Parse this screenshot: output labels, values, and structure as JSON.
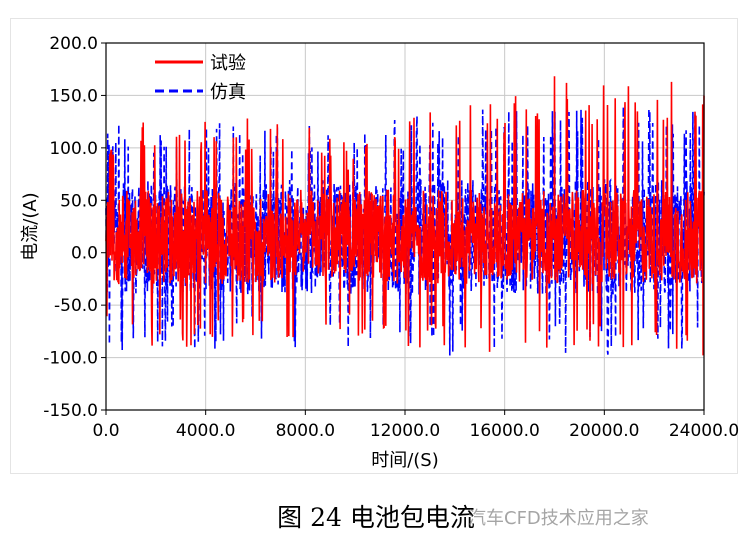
{
  "caption": "图 24 电池包电流",
  "watermark": "汽车CFD技术应用之家",
  "chart_data": {
    "type": "line",
    "title": "",
    "xlabel": "时间/(S)",
    "ylabel": "电流/(A)",
    "xlim": [
      0,
      24000
    ],
    "ylim": [
      -150,
      200
    ],
    "xticks": [
      "0.0",
      "4000.0",
      "8000.0",
      "12000.0",
      "16000.0",
      "20000.0",
      "24000.0"
    ],
    "yticks": [
      "200.0",
      "150.0",
      "100.0",
      "50.0",
      "0.0",
      "-50.0",
      "-100.0",
      "-150.0"
    ],
    "grid": true,
    "legend_position": "top-left",
    "series": [
      {
        "name": "试验",
        "color": "#ff0000",
        "style": "solid",
        "envelope_x": [
          0,
          2000,
          4000,
          6000,
          8000,
          10000,
          12000,
          14000,
          16000,
          18000,
          20000,
          22000,
          24000
        ],
        "envelope_max": [
          120,
          130,
          125,
          130,
          125,
          100,
          135,
          140,
          150,
          170,
          160,
          165,
          165
        ],
        "envelope_min": [
          -85,
          -90,
          -90,
          -80,
          -95,
          -80,
          -95,
          -95,
          -95,
          -95,
          -95,
          -95,
          -100
        ],
        "typical_range": [
          -30,
          60
        ]
      },
      {
        "name": "仿真",
        "color": "#0000ff",
        "style": "dashed",
        "envelope_x": [
          0,
          2000,
          4000,
          6000,
          8000,
          10000,
          12000,
          14000,
          16000,
          18000,
          20000,
          22000,
          24000
        ],
        "envelope_max": [
          125,
          120,
          130,
          120,
          125,
          115,
          130,
          135,
          140,
          140,
          145,
          140,
          140
        ],
        "envelope_min": [
          -95,
          -90,
          -95,
          -85,
          -95,
          -90,
          -95,
          -100,
          -95,
          -95,
          -100,
          -95,
          -100
        ],
        "typical_range": [
          -40,
          70
        ]
      }
    ]
  }
}
